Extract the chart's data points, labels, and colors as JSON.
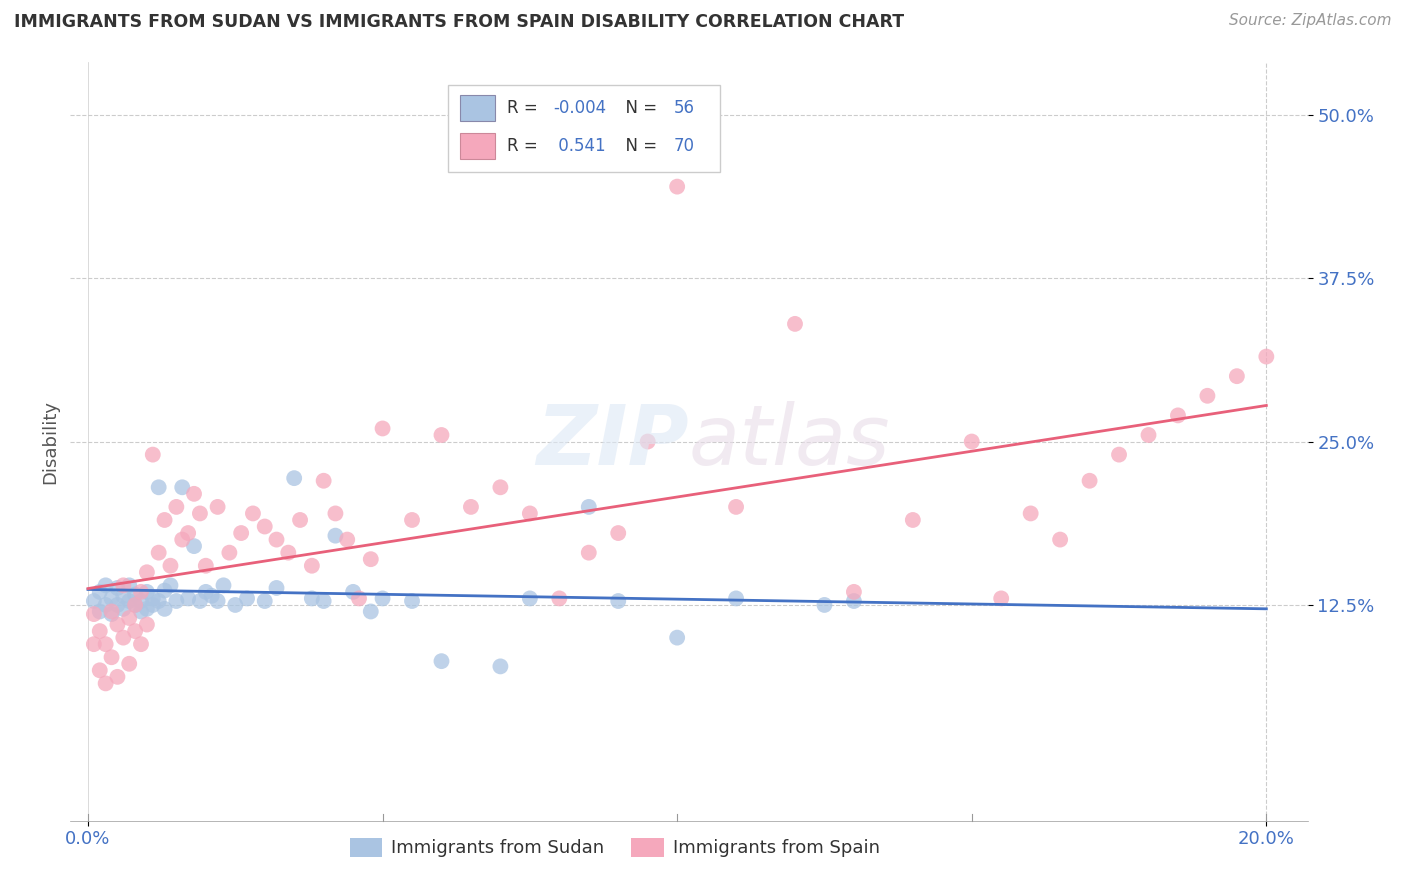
{
  "title": "IMMIGRANTS FROM SUDAN VS IMMIGRANTS FROM SPAIN DISABILITY CORRELATION CHART",
  "source": "Source: ZipAtlas.com",
  "ylabel": "Disability",
  "xlim": [
    0.0,
    0.2
  ],
  "ylim": [
    -0.04,
    0.54
  ],
  "ytick_vals": [
    0.125,
    0.25,
    0.375,
    0.5
  ],
  "ytick_labels": [
    "12.5%",
    "25.0%",
    "37.5%",
    "50.0%"
  ],
  "legend_r_sudan": "-0.004",
  "legend_n_sudan": "56",
  "legend_r_spain": "0.541",
  "legend_n_spain": "70",
  "color_sudan": "#aac4e2",
  "color_spain": "#f5a8bc",
  "color_line_sudan": "#4472c4",
  "color_line_spain": "#e8607a",
  "color_text_blue": "#4472c4",
  "color_grid": "#cccccc",
  "sudan_x": [
    0.001,
    0.002,
    0.002,
    0.003,
    0.003,
    0.004,
    0.004,
    0.005,
    0.005,
    0.006,
    0.006,
    0.007,
    0.007,
    0.008,
    0.008,
    0.009,
    0.009,
    0.01,
    0.01,
    0.011,
    0.011,
    0.012,
    0.012,
    0.013,
    0.013,
    0.014,
    0.015,
    0.016,
    0.017,
    0.018,
    0.019,
    0.02,
    0.021,
    0.022,
    0.023,
    0.025,
    0.027,
    0.03,
    0.032,
    0.035,
    0.038,
    0.04,
    0.042,
    0.045,
    0.048,
    0.05,
    0.055,
    0.06,
    0.07,
    0.075,
    0.085,
    0.09,
    0.1,
    0.11,
    0.125,
    0.13
  ],
  "sudan_y": [
    0.128,
    0.12,
    0.135,
    0.125,
    0.14,
    0.118,
    0.13,
    0.125,
    0.138,
    0.122,
    0.132,
    0.128,
    0.14,
    0.125,
    0.133,
    0.12,
    0.128,
    0.135,
    0.122,
    0.13,
    0.125,
    0.215,
    0.128,
    0.122,
    0.136,
    0.14,
    0.128,
    0.215,
    0.13,
    0.17,
    0.128,
    0.135,
    0.132,
    0.128,
    0.14,
    0.125,
    0.13,
    0.128,
    0.138,
    0.222,
    0.13,
    0.128,
    0.178,
    0.135,
    0.12,
    0.13,
    0.128,
    0.082,
    0.078,
    0.13,
    0.2,
    0.128,
    0.1,
    0.13,
    0.125,
    0.128
  ],
  "spain_x": [
    0.001,
    0.001,
    0.002,
    0.002,
    0.003,
    0.003,
    0.004,
    0.004,
    0.005,
    0.005,
    0.006,
    0.006,
    0.007,
    0.007,
    0.008,
    0.008,
    0.009,
    0.009,
    0.01,
    0.01,
    0.011,
    0.012,
    0.013,
    0.014,
    0.015,
    0.016,
    0.017,
    0.018,
    0.019,
    0.02,
    0.022,
    0.024,
    0.026,
    0.028,
    0.03,
    0.032,
    0.034,
    0.036,
    0.038,
    0.04,
    0.042,
    0.044,
    0.046,
    0.048,
    0.05,
    0.055,
    0.06,
    0.065,
    0.07,
    0.075,
    0.08,
    0.085,
    0.09,
    0.095,
    0.1,
    0.11,
    0.12,
    0.13,
    0.14,
    0.15,
    0.155,
    0.16,
    0.165,
    0.17,
    0.175,
    0.18,
    0.185,
    0.19,
    0.195,
    0.2
  ],
  "spain_y": [
    0.118,
    0.095,
    0.105,
    0.075,
    0.095,
    0.065,
    0.12,
    0.085,
    0.07,
    0.11,
    0.1,
    0.14,
    0.115,
    0.08,
    0.125,
    0.105,
    0.095,
    0.135,
    0.11,
    0.15,
    0.24,
    0.165,
    0.19,
    0.155,
    0.2,
    0.175,
    0.18,
    0.21,
    0.195,
    0.155,
    0.2,
    0.165,
    0.18,
    0.195,
    0.185,
    0.175,
    0.165,
    0.19,
    0.155,
    0.22,
    0.195,
    0.175,
    0.13,
    0.16,
    0.26,
    0.19,
    0.255,
    0.2,
    0.215,
    0.195,
    0.13,
    0.165,
    0.18,
    0.25,
    0.445,
    0.2,
    0.34,
    0.135,
    0.19,
    0.25,
    0.13,
    0.195,
    0.175,
    0.22,
    0.24,
    0.255,
    0.27,
    0.285,
    0.3,
    0.315
  ]
}
